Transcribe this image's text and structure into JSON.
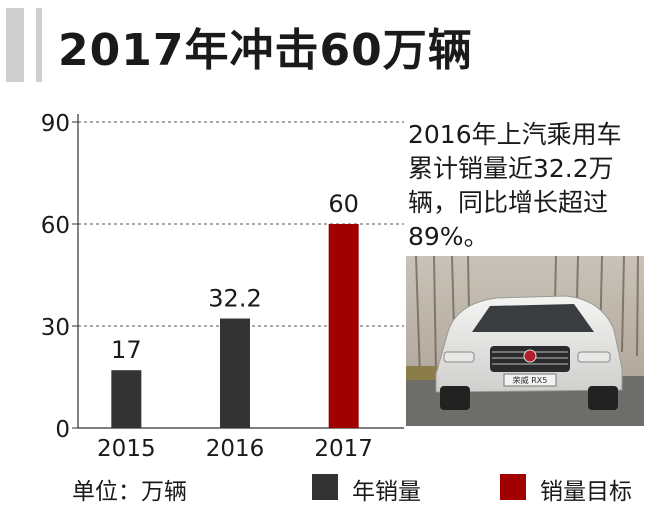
{
  "title": "2017年冲击60万辆",
  "note": "2016年上汽乘用车累计销量近32.2万辆，同比增长超过89%。",
  "unit_label": "单位：万辆",
  "legend": [
    {
      "label": "年销量",
      "color": "#333333"
    },
    {
      "label": "销量目标",
      "color": "#a00000"
    }
  ],
  "photo": {
    "icon": "suv-car-photo",
    "plate_text": "荣威 RX5"
  },
  "chart_data": {
    "type": "bar",
    "title": "2017年冲击60万辆",
    "xlabel": "",
    "ylabel": "",
    "categories": [
      "2015",
      "2016",
      "2017"
    ],
    "series": [
      {
        "name": "年销量",
        "values": [
          17,
          32.2,
          null
        ],
        "color": "#333333"
      },
      {
        "name": "销量目标",
        "values": [
          null,
          null,
          60
        ],
        "color": "#a00000"
      }
    ],
    "data_labels": [
      "17",
      "32.2",
      "60"
    ],
    "ylim": [
      0,
      90
    ],
    "yticks": [
      0,
      30,
      60,
      90
    ],
    "grid": true,
    "legend_position": "bottom"
  }
}
